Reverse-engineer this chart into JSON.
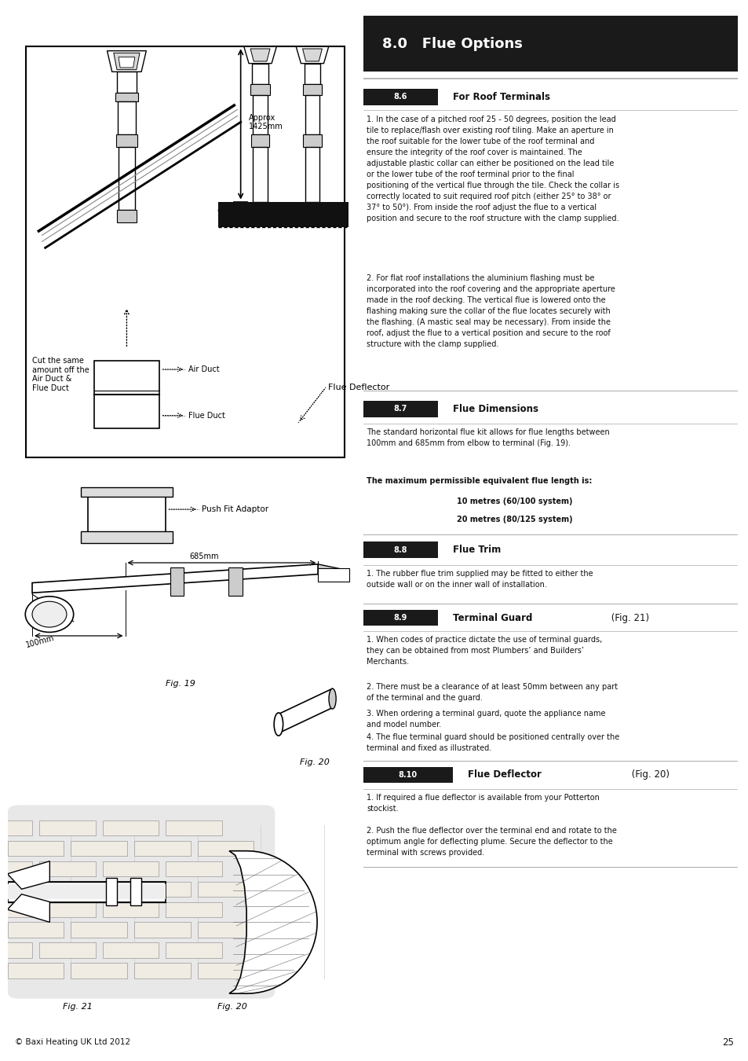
{
  "page_bg": "#ffffff",
  "header_bg": "#1a1a1a",
  "header_text": "8.0   Flue Options",
  "header_text_color": "#ffffff",
  "text_color": "#111111",
  "line_color": "#aaaaaa",
  "footer_text": "© Baxi Heating UK Ltd 2012",
  "page_number": "25",
  "para1": "1. In the case of a pitched roof 25 - 50 degrees, position the lead\ntile to replace/flash over existing roof tiling. Make an aperture in\nthe roof suitable for the lower tube of the roof terminal and\nensure the integrity of the roof cover is maintained. The\nadjustable plastic collar can either be positioned on the lead tile\nor the lower tube of the roof terminal prior to the final\npositioning of the vertical flue through the tile. Check the collar is\ncorrectly located to suit required roof pitch (either 25° to 38° or\n37° to 50°). From inside the roof adjust the flue to a vertical\nposition and secure to the roof structure with the clamp supplied.",
  "para2": "2. For flat roof installations the aluminium flashing must be\nincorporated into the roof covering and the appropriate aperture\nmade in the roof decking. The vertical flue is lowered onto the\nflashing making sure the collar of the flue locates securely with\nthe flashing. (A mastic seal may be necessary). From inside the\nroof, adjust the flue to a vertical position and secure to the roof\nstructure with the clamp supplied.",
  "para3": "The standard horizontal flue kit allows for flue lengths between\n100mm and 685mm from elbow to terminal (Fig. 19).",
  "para_bold": "The maximum permissible equivalent flue length is:",
  "para_bold2a": "10 metres (60/100 system)",
  "para_bold2b": "20 metres (80/125 system)",
  "para4": "1. The rubber flue trim supplied may be fitted to either the\noutside wall or on the inner wall of installation.",
  "para5a": "1. When codes of practice dictate the use of terminal guards,\nthey can be obtained from most Plumbers’ and Builders’\nMerchants.",
  "para5b": "2. There must be a clearance of at least 50mm between any part\nof the terminal and the guard.",
  "para5c": "3. When ordering a terminal guard, quote the appliance name\nand model number.",
  "para5d": "4. The flue terminal guard should be positioned centrally over the\nterminal and fixed as illustrated.",
  "para6a": "1. If required a flue deflector is available from your Potterton\nstockist.",
  "para6b": "2. Push the flue deflector over the terminal end and rotate to the\noptimum angle for deflecting plume. Secure the deflector to the\nterminal with screws provided."
}
